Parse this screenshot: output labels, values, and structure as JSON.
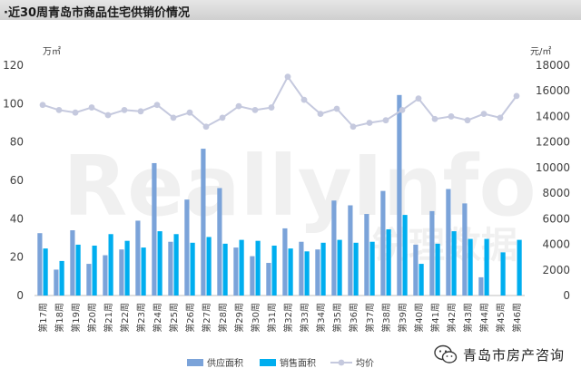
{
  "header": {
    "title": "·近30周青岛市商品住宅供销价情况"
  },
  "chart_data": {
    "type": "bar",
    "categories": [
      "第17周",
      "第18周",
      "第19周",
      "第20周",
      "第21周",
      "第22周",
      "第23周",
      "第24周",
      "第25周",
      "第26周",
      "第27周",
      "第28周",
      "第29周",
      "第30周",
      "第31周",
      "第32周",
      "第33周",
      "第34周",
      "第35周",
      "第36周",
      "第37周",
      "第38周",
      "第39周",
      "第40周",
      "第41周",
      "第42周",
      "第43周",
      "第44周",
      "第45周",
      "第46周"
    ],
    "series": [
      {
        "name": "供应面积",
        "kind": "bar",
        "axis": "left",
        "color": "#7ba3d9",
        "values": [
          32.5,
          13.5,
          34,
          16.5,
          21,
          24,
          39,
          69,
          28,
          50,
          76.5,
          56,
          25,
          20.5,
          17,
          35,
          28,
          24,
          49.5,
          47,
          42.5,
          54.5,
          104.5,
          26.5,
          44,
          55.5,
          48,
          9.5,
          0,
          0
        ]
      },
      {
        "name": "销售面积",
        "kind": "bar",
        "axis": "left",
        "color": "#00aeef",
        "values": [
          24.5,
          18,
          26.5,
          26,
          32,
          28.5,
          25,
          33.5,
          32,
          27.5,
          30.5,
          27,
          29,
          28.5,
          26,
          24.5,
          23,
          27.5,
          29,
          27.5,
          28,
          34.5,
          42,
          16.5,
          27,
          33.5,
          29.5,
          29.5,
          22.5,
          29
        ]
      },
      {
        "name": "均价",
        "kind": "line",
        "axis": "right",
        "color": "#c5c9de",
        "values": [
          14900,
          14500,
          14300,
          14700,
          14100,
          14500,
          14400,
          14900,
          13900,
          14300,
          13200,
          13900,
          14800,
          14500,
          14700,
          17100,
          15300,
          14200,
          14600,
          13200,
          13500,
          13700,
          14500,
          15400,
          13800,
          14000,
          13700,
          14200,
          13900,
          15600
        ]
      }
    ],
    "yleft": {
      "label": "万㎡",
      "lim": [
        0,
        120
      ],
      "ticks": [
        0,
        20,
        40,
        60,
        80,
        100,
        120
      ]
    },
    "yright": {
      "label": "元/㎡",
      "lim": [
        0,
        18000
      ],
      "ticks": [
        0,
        2000,
        4000,
        6000,
        8000,
        10000,
        12000,
        14000,
        16000,
        18000
      ]
    },
    "legend_position": "bottom-center",
    "watermark": "ReallyInfo 锐理数据"
  },
  "footer": {
    "wechat_label": "青岛市房产咨询",
    "wechat_icon": "wechat-icon"
  }
}
